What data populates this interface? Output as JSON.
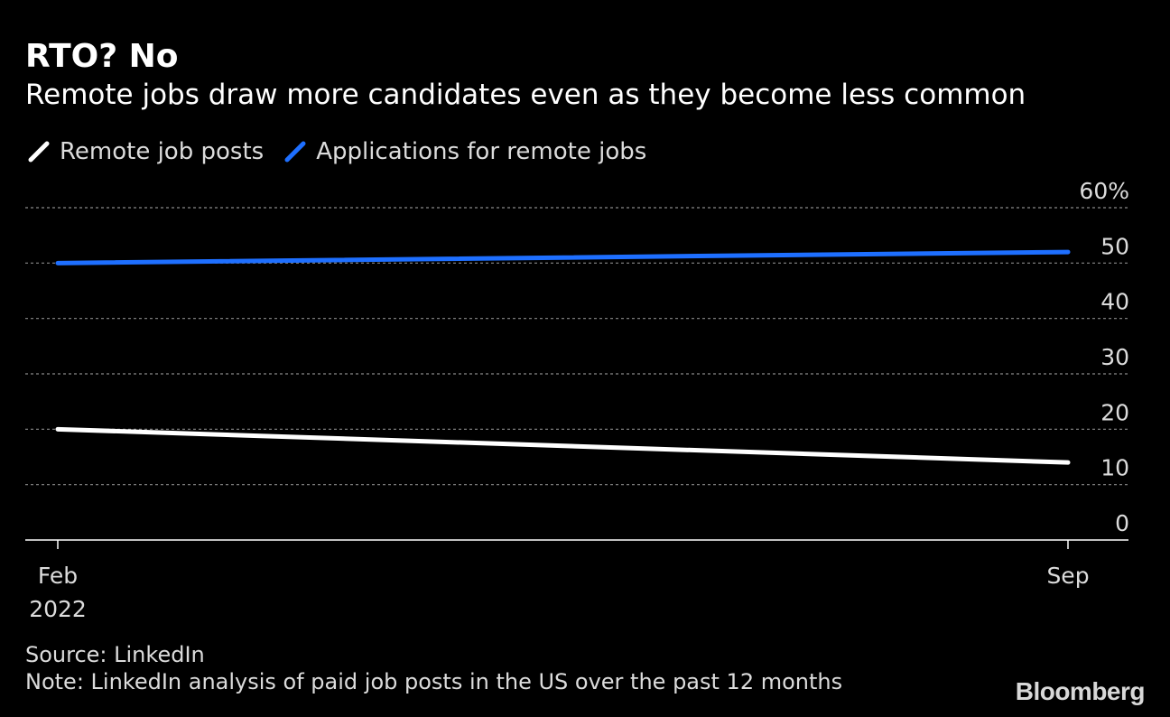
{
  "chart_data": {
    "type": "line",
    "title": "RTO? No",
    "subtitle": "Remote jobs draw more candidates even as they become less common",
    "x": [
      "Feb 2022",
      "Sep"
    ],
    "x_tick_labels": [
      [
        "Feb",
        "2022"
      ],
      [
        "Sep"
      ]
    ],
    "y_ticks": [
      "60%",
      "50",
      "40",
      "30",
      "20",
      "10",
      "0"
    ],
    "ylim": [
      0,
      60
    ],
    "grid": true,
    "legend_position": "top-left",
    "series": [
      {
        "name": "Remote job posts",
        "color": "#ffffff",
        "values": [
          20,
          14
        ]
      },
      {
        "name": "Applications for remote jobs",
        "color": "#1e6fff",
        "values": [
          50,
          52
        ]
      }
    ]
  },
  "footer": {
    "source": "Source: LinkedIn",
    "note": "Note: LinkedIn analysis of paid job posts in the US over the past 12 months",
    "brand": "Bloomberg"
  }
}
